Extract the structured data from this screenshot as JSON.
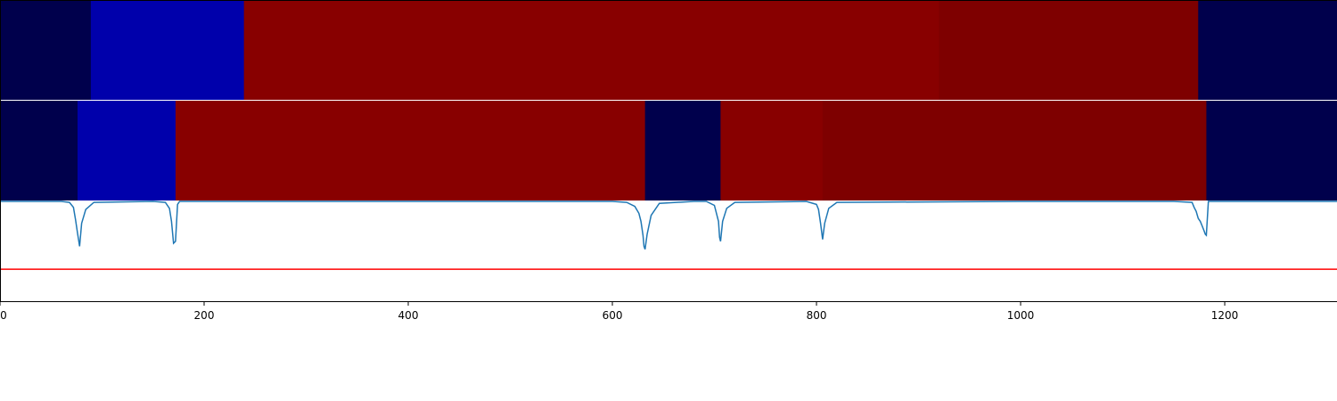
{
  "chart_data": {
    "type": "heatmap",
    "xlim": [
      0,
      1310
    ],
    "x_ticks": [
      0,
      200,
      400,
      600,
      800,
      1000,
      1200
    ],
    "x_tick_labels": [
      "0",
      "200",
      "400",
      "600",
      "800",
      "1000",
      "1200"
    ],
    "grid": false,
    "segmentation_rows": [
      {
        "segments": [
          {
            "start": 0,
            "end": 89,
            "color": "#00004c"
          },
          {
            "start": 89,
            "end": 239,
            "color": "#0000ab"
          },
          {
            "start": 239,
            "end": 920,
            "color": "#880000"
          },
          {
            "start": 920,
            "end": 1174,
            "color": "#7e0000"
          },
          {
            "start": 1174,
            "end": 1310,
            "color": "#00004c"
          }
        ]
      },
      {
        "segments": [
          {
            "start": 0,
            "end": 76,
            "color": "#00004c"
          },
          {
            "start": 76,
            "end": 172,
            "color": "#0000ab"
          },
          {
            "start": 172,
            "end": 632,
            "color": "#880000"
          },
          {
            "start": 632,
            "end": 706,
            "color": "#00004c"
          },
          {
            "start": 706,
            "end": 806,
            "color": "#880000"
          },
          {
            "start": 806,
            "end": 1182,
            "color": "#7e0000"
          },
          {
            "start": 1182,
            "end": 1310,
            "color": "#00004c"
          }
        ]
      }
    ],
    "signal_panel": {
      "ylim": [
        0,
        1
      ],
      "threshold": 0.32,
      "threshold_color": "#ff0000",
      "line_color": "#1f77b4",
      "series": {
        "x": [
          0,
          60,
          68,
          72,
          74,
          76,
          78,
          80,
          84,
          92,
          150,
          162,
          166,
          168,
          170,
          172,
          174,
          176,
          178,
          300,
          600,
          614,
          622,
          626,
          628,
          630,
          631,
          632,
          634,
          638,
          646,
          680,
          692,
          700,
          704,
          705,
          706,
          708,
          712,
          720,
          790,
          800,
          802,
          804,
          806,
          808,
          812,
          820,
          1000,
          1150,
          1168,
          1170,
          1172,
          1174,
          1176,
          1178,
          1180,
          1181,
          1182,
          1184,
          1310
        ],
        "y": [
          1.0,
          1.0,
          0.99,
          0.94,
          0.82,
          0.68,
          0.55,
          0.78,
          0.92,
          0.99,
          1.0,
          0.99,
          0.93,
          0.8,
          0.58,
          0.6,
          0.97,
          1.0,
          1.0,
          1.0,
          1.0,
          0.99,
          0.95,
          0.88,
          0.8,
          0.66,
          0.55,
          0.52,
          0.67,
          0.86,
          0.98,
          1.0,
          1.0,
          0.96,
          0.8,
          0.64,
          0.6,
          0.8,
          0.93,
          0.99,
          1.0,
          0.97,
          0.92,
          0.78,
          0.62,
          0.78,
          0.93,
          0.99,
          1.0,
          1.0,
          0.99,
          0.94,
          0.9,
          0.83,
          0.8,
          0.75,
          0.7,
          0.67,
          0.66,
          1.0,
          1.0
        ]
      }
    }
  }
}
